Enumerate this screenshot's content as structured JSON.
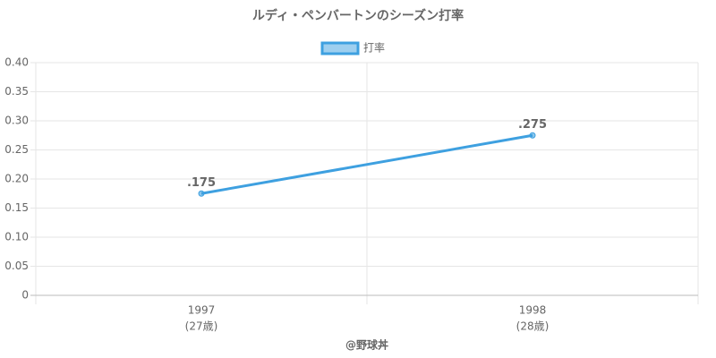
{
  "chart_data": {
    "type": "line",
    "title": "ルディ・ペンバートンのシーズン打率",
    "categories": [
      "1997",
      "1998"
    ],
    "category_sublabels": [
      "(27歳)",
      "(28歳)"
    ],
    "series": [
      {
        "name": "打率",
        "color": "#3ea0e0",
        "values": [
          0.175,
          0.275
        ],
        "value_labels": [
          ".175",
          ".275"
        ]
      }
    ],
    "x_label": "@野球丼",
    "ylim": [
      0,
      0.4
    ],
    "yticks": [
      0,
      0.05,
      {
        "value": 0.1,
        "label": "0.10"
      },
      0.15,
      {
        "value": 0.2,
        "label": "0.20"
      },
      0.25,
      {
        "value": 0.3,
        "label": "0.30"
      },
      0.35,
      {
        "value": 0.4,
        "label": "0.40"
      }
    ],
    "grid": true,
    "legend": "top"
  }
}
